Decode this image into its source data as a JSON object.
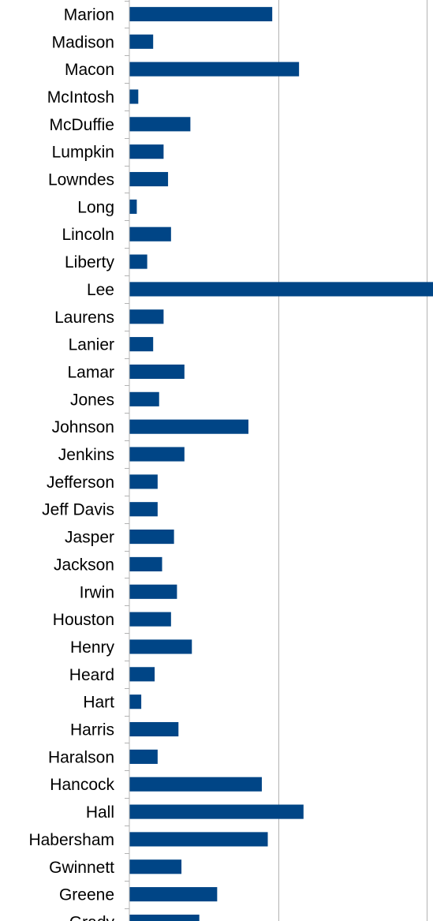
{
  "chart_data": {
    "type": "bar",
    "orientation": "horizontal",
    "title": "",
    "xlabel": "",
    "ylabel": "",
    "categories": [
      "Marion",
      "Madison",
      "Macon",
      "McIntosh",
      "McDuffie",
      "Lumpkin",
      "Lowndes",
      "Long",
      "Lincoln",
      "Liberty",
      "Lee",
      "Laurens",
      "Lanier",
      "Lamar",
      "Jones",
      "Johnson",
      "Jenkins",
      "Jefferson",
      "Jeff Davis",
      "Jasper",
      "Jackson",
      "Irwin",
      "Houston",
      "Henry",
      "Heard",
      "Hart",
      "Harris",
      "Haralson",
      "Hancock",
      "Hall",
      "Habersham",
      "Gwinnett",
      "Greene",
      "Grady"
    ],
    "values": [
      9.6,
      1.6,
      11.4,
      0.6,
      4.1,
      2.3,
      2.6,
      0.5,
      2.8,
      1.2,
      20.4,
      2.3,
      1.6,
      3.7,
      2.0,
      8.0,
      3.7,
      1.9,
      1.9,
      3.0,
      2.2,
      3.2,
      2.8,
      4.2,
      1.7,
      0.8,
      3.3,
      1.9,
      8.9,
      11.7,
      9.3,
      3.5,
      5.9,
      4.7
    ],
    "xlim": [
      0,
      20.4
    ],
    "gridlines_at": [
      10,
      20
    ],
    "grid": true,
    "bar_color": "#004586",
    "legend": "none"
  }
}
